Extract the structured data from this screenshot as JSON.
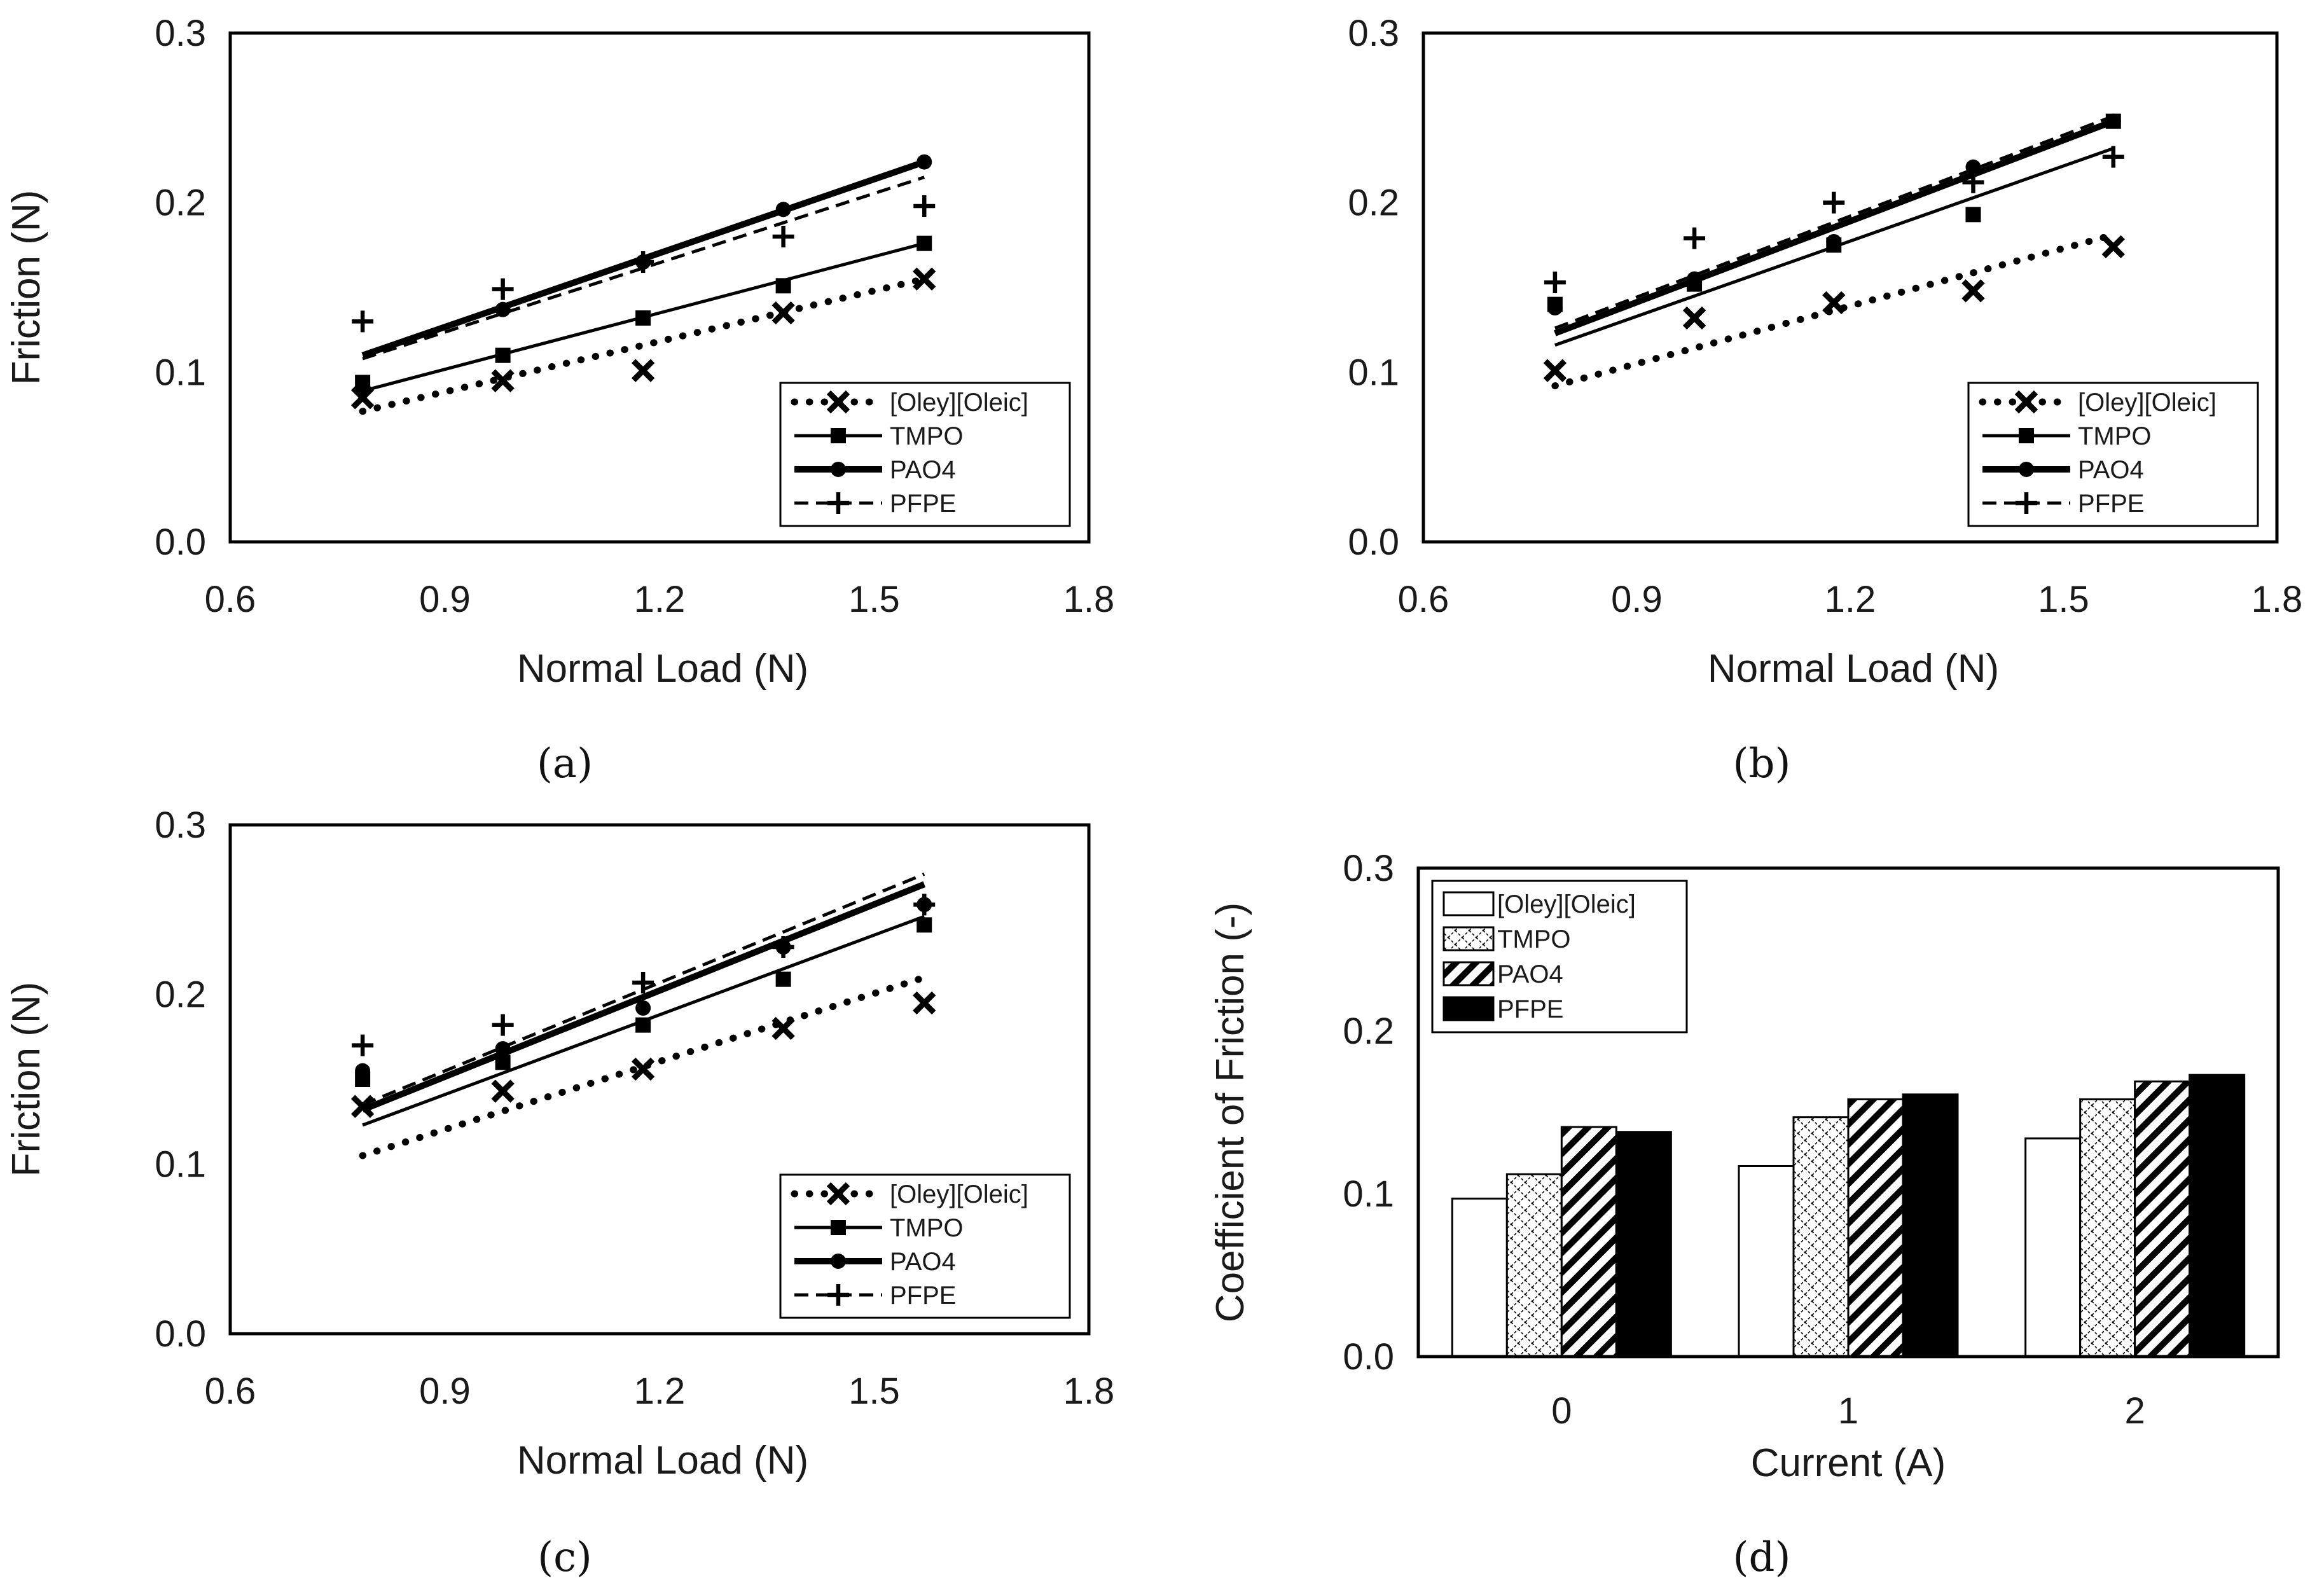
{
  "figure": {
    "colors": {
      "ink": "#000000",
      "text": "#1a1a1a",
      "background": "#ffffff"
    }
  },
  "chart_data": [
    {
      "panel": "a",
      "panel_label": "(a)",
      "type": "scatter",
      "xlabel": "Normal Load (N)",
      "ylabel": "Friction (N)",
      "xlim": [
        0.6,
        1.8
      ],
      "ylim": [
        0.0,
        0.3
      ],
      "xticks": [
        "0.6",
        "0.9",
        "1.2",
        "1.5",
        "1.8"
      ],
      "yticks": [
        "0.0",
        "0.1",
        "0.2",
        "0.3"
      ],
      "x": [
        0.785,
        0.981,
        1.177,
        1.373,
        1.57
      ],
      "legend": "bottom-right",
      "series": [
        {
          "name": "[Oley][Oleic]",
          "marker": "x",
          "line": "dotted",
          "values": [
            0.085,
            0.095,
            0.101,
            0.135,
            0.155
          ],
          "fit": [
            0.077,
            0.155
          ]
        },
        {
          "name": "TMPO",
          "marker": "square",
          "line": "solid",
          "values": [
            0.094,
            0.11,
            0.132,
            0.151,
            0.176
          ],
          "fit": [
            0.089,
            0.176
          ]
        },
        {
          "name": "PAO4",
          "marker": "circle",
          "line": "thick",
          "values": [
            0.09,
            0.137,
            0.165,
            0.196,
            0.224
          ],
          "fit": [
            0.11,
            0.224
          ]
        },
        {
          "name": "PFPE",
          "marker": "plus",
          "line": "dashed",
          "values": [
            0.13,
            0.149,
            0.165,
            0.18,
            0.198
          ],
          "fit": [
            0.108,
            0.215
          ]
        }
      ]
    },
    {
      "panel": "b",
      "panel_label": "(b)",
      "type": "scatter",
      "xlabel": "Normal Load (N)",
      "ylabel": "Friction (N)",
      "xlim": [
        0.6,
        1.8
      ],
      "ylim": [
        0.0,
        0.3
      ],
      "xticks": [
        "0.6",
        "0.9",
        "1.2",
        "1.5",
        "1.8"
      ],
      "yticks": [
        "0.0",
        "0.1",
        "0.2",
        "0.3"
      ],
      "x": [
        0.785,
        0.981,
        1.177,
        1.373,
        1.57
      ],
      "legend": "bottom-right",
      "series": [
        {
          "name": "[Oley][Oleic]",
          "marker": "x",
          "line": "dotted",
          "values": [
            0.101,
            0.132,
            0.141,
            0.148,
            0.174
          ],
          "fit": [
            0.092,
            0.181
          ]
        },
        {
          "name": "TMPO",
          "marker": "square",
          "line": "solid",
          "values": [
            0.14,
            0.152,
            0.175,
            0.193,
            0.248
          ],
          "fit": [
            0.116,
            0.232
          ]
        },
        {
          "name": "PAO4",
          "marker": "circle",
          "line": "thick",
          "values": [
            0.138,
            0.155,
            0.177,
            0.221,
            0.248
          ],
          "fit": [
            0.123,
            0.248
          ]
        },
        {
          "name": "PFPE",
          "marker": "plus",
          "line": "dashed",
          "values": [
            0.153,
            0.179,
            0.2,
            0.212,
            0.227
          ],
          "fit": [
            0.126,
            0.251
          ]
        }
      ]
    },
    {
      "panel": "c",
      "panel_label": "(c)",
      "type": "scatter",
      "xlabel": "Normal Load (N)",
      "ylabel": "Friction (N)",
      "xlim": [
        0.6,
        1.8
      ],
      "ylim": [
        0.0,
        0.3
      ],
      "xticks": [
        "0.6",
        "0.9",
        "1.2",
        "1.5",
        "1.8"
      ],
      "yticks": [
        "0.0",
        "0.1",
        "0.2",
        "0.3"
      ],
      "x": [
        0.785,
        0.981,
        1.177,
        1.373,
        1.57
      ],
      "legend": "bottom-right",
      "series": [
        {
          "name": "[Oley][Oleic]",
          "marker": "x",
          "line": "dotted",
          "values": [
            0.134,
            0.143,
            0.156,
            0.18,
            0.195
          ],
          "fit": [
            0.105,
            0.21
          ]
        },
        {
          "name": "TMPO",
          "marker": "square",
          "line": "solid",
          "values": [
            0.15,
            0.16,
            0.182,
            0.209,
            0.241
          ],
          "fit": [
            0.123,
            0.246
          ]
        },
        {
          "name": "PAO4",
          "marker": "circle",
          "line": "thick",
          "values": [
            0.155,
            0.168,
            0.192,
            0.228,
            0.253
          ],
          "fit": [
            0.132,
            0.265
          ]
        },
        {
          "name": "PFPE",
          "marker": "plus",
          "line": "dashed",
          "values": [
            0.17,
            0.182,
            0.207,
            0.228,
            0.253
          ],
          "fit": [
            0.135,
            0.271
          ]
        }
      ]
    },
    {
      "panel": "d",
      "panel_label": "(d)",
      "type": "bar",
      "xlabel": "Current (A)",
      "ylabel": "Coefficient of Friction (-)",
      "ylim": [
        0.0,
        0.3
      ],
      "yticks": [
        "0.0",
        "0.1",
        "0.2",
        "0.3"
      ],
      "categories": [
        "0",
        "1",
        "2"
      ],
      "legend": "top-left",
      "series": [
        {
          "name": "[Oley][Oleic]",
          "fill": "open",
          "values": [
            0.097,
            0.117,
            0.134
          ]
        },
        {
          "name": "TMPO",
          "fill": "crosshatch",
          "values": [
            0.112,
            0.147,
            0.158
          ]
        },
        {
          "name": "PAO4",
          "fill": "diagonal",
          "values": [
            0.141,
            0.158,
            0.169
          ]
        },
        {
          "name": "PFPE",
          "fill": "solid",
          "values": [
            0.138,
            0.161,
            0.173
          ]
        }
      ]
    }
  ]
}
